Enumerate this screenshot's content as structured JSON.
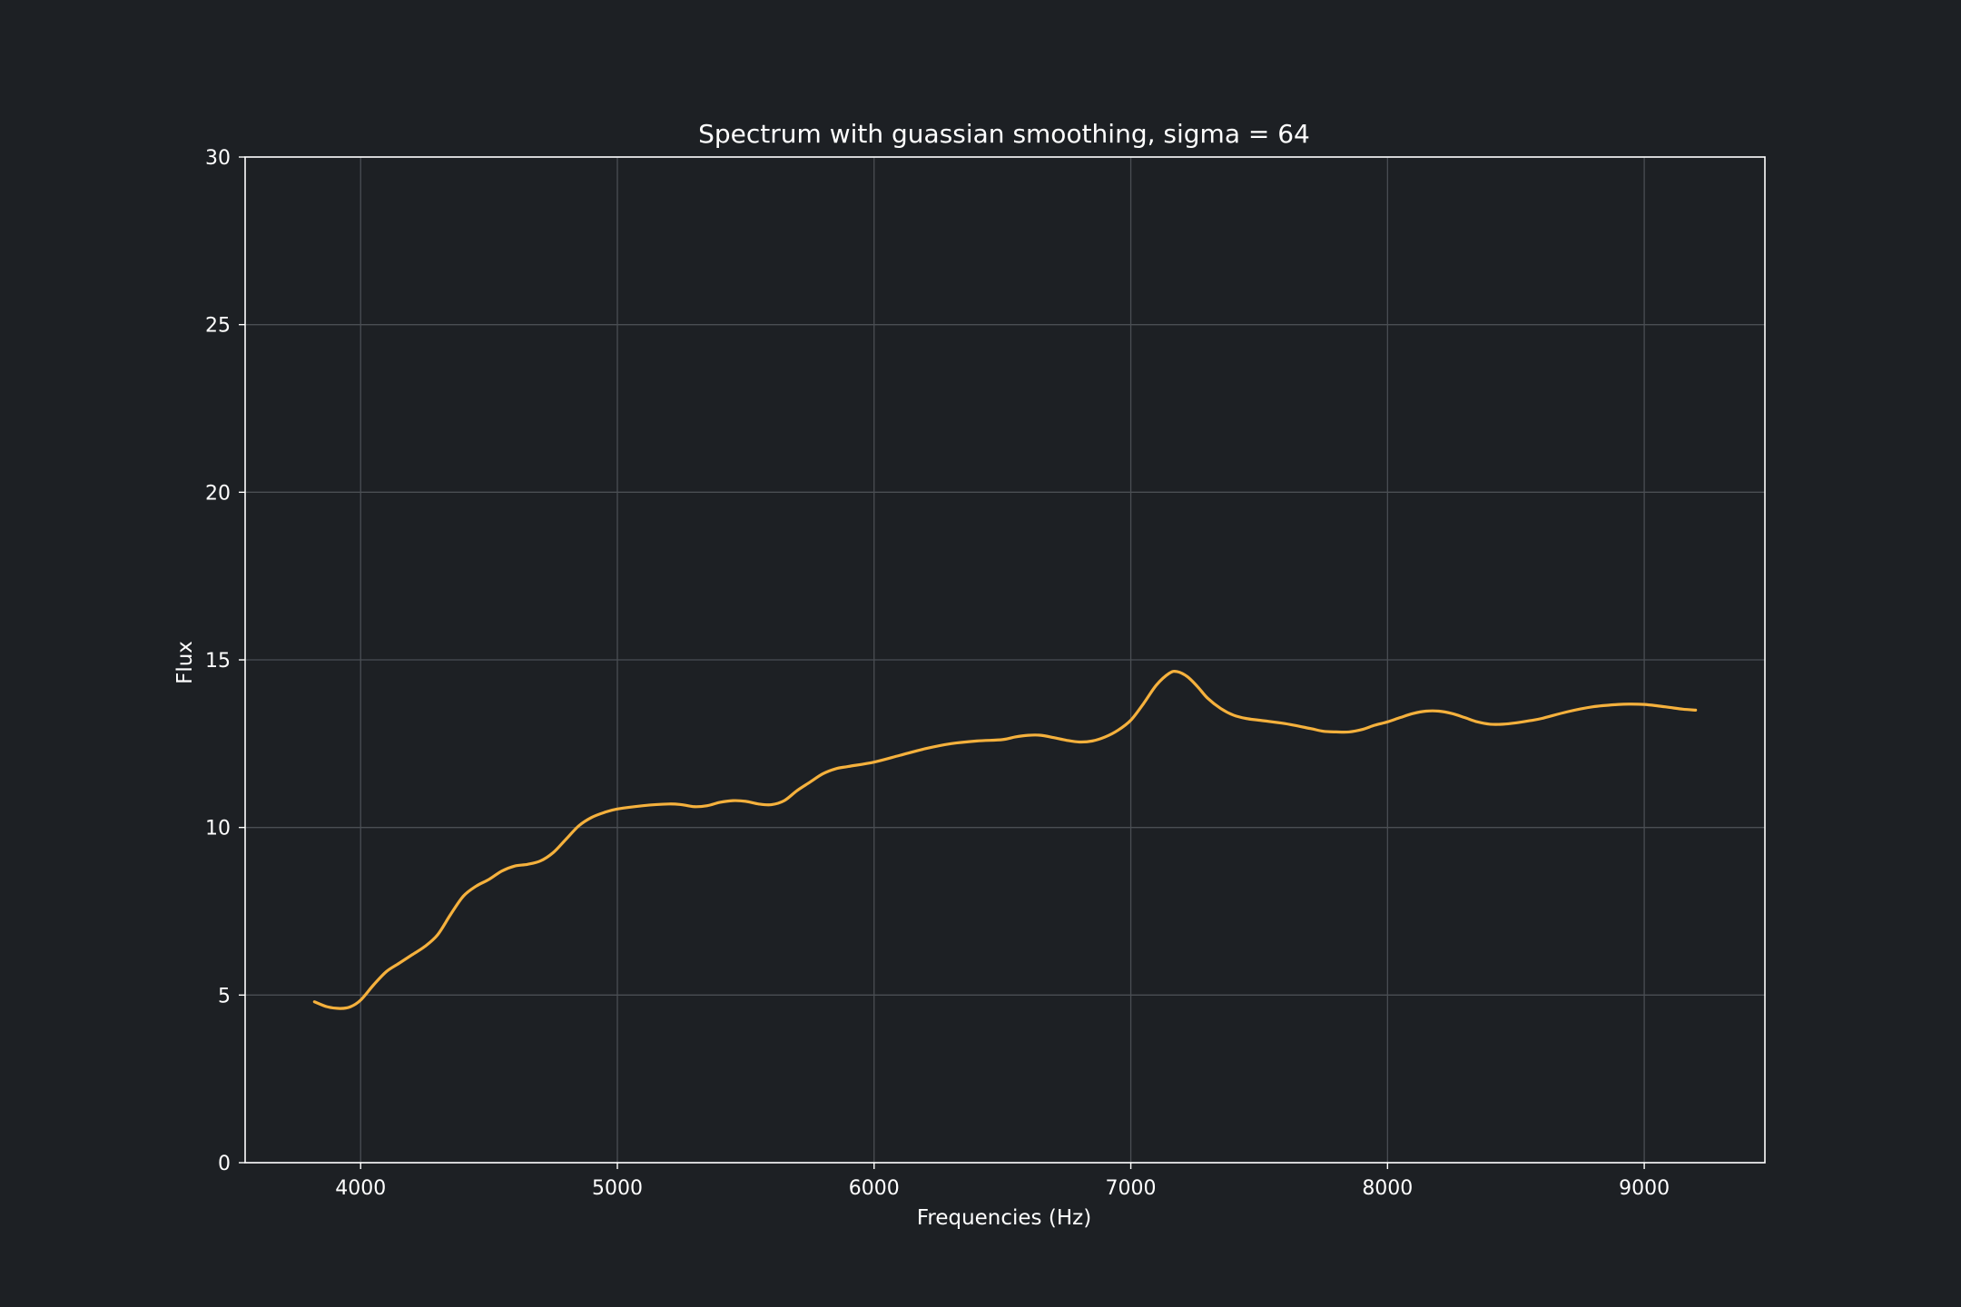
{
  "chart_data": {
    "type": "line",
    "title": "Spectrum with guassian smoothing, sigma = 64",
    "xlabel": "Frequencies (Hz)",
    "ylabel": "Flux",
    "xlim": [
      3550,
      9470
    ],
    "ylim": [
      0,
      30
    ],
    "xticks": [
      4000,
      5000,
      6000,
      7000,
      8000,
      9000
    ],
    "yticks": [
      0,
      5,
      10,
      15,
      20,
      25,
      30
    ],
    "grid": true,
    "line_color": "#f5b13d",
    "series": [
      {
        "x": [
          3820,
          3870,
          3920,
          3960,
          4000,
          4050,
          4100,
          4150,
          4200,
          4250,
          4300,
          4350,
          4400,
          4450,
          4500,
          4550,
          4600,
          4650,
          4700,
          4750,
          4800,
          4850,
          4900,
          4950,
          5000,
          5100,
          5200,
          5250,
          5300,
          5350,
          5400,
          5450,
          5500,
          5550,
          5600,
          5650,
          5700,
          5750,
          5800,
          5850,
          5900,
          6000,
          6100,
          6200,
          6300,
          6400,
          6500,
          6550,
          6600,
          6650,
          6700,
          6750,
          6800,
          6850,
          6900,
          6950,
          7000,
          7050,
          7100,
          7150,
          7180,
          7220,
          7260,
          7300,
          7350,
          7400,
          7450,
          7500,
          7600,
          7700,
          7750,
          7800,
          7850,
          7900,
          7950,
          8000,
          8050,
          8100,
          8150,
          8200,
          8250,
          8300,
          8350,
          8400,
          8450,
          8500,
          8550,
          8600,
          8700,
          8800,
          8900,
          8950,
          9000,
          9050,
          9100,
          9150,
          9200
        ],
        "y": [
          4.8,
          4.65,
          4.6,
          4.65,
          4.85,
          5.3,
          5.7,
          5.95,
          6.2,
          6.45,
          6.8,
          7.4,
          7.95,
          8.25,
          8.45,
          8.7,
          8.85,
          8.9,
          9.0,
          9.25,
          9.65,
          10.05,
          10.3,
          10.45,
          10.55,
          10.65,
          10.7,
          10.68,
          10.62,
          10.65,
          10.75,
          10.8,
          10.78,
          10.7,
          10.68,
          10.8,
          11.1,
          11.35,
          11.6,
          11.75,
          11.82,
          11.95,
          12.15,
          12.35,
          12.5,
          12.58,
          12.62,
          12.7,
          12.75,
          12.75,
          12.68,
          12.6,
          12.55,
          12.58,
          12.7,
          12.9,
          13.2,
          13.7,
          14.25,
          14.6,
          14.65,
          14.5,
          14.2,
          13.85,
          13.55,
          13.35,
          13.25,
          13.2,
          13.1,
          12.95,
          12.87,
          12.85,
          12.85,
          12.92,
          13.05,
          13.15,
          13.28,
          13.4,
          13.47,
          13.47,
          13.4,
          13.28,
          13.15,
          13.08,
          13.08,
          13.12,
          13.18,
          13.25,
          13.45,
          13.6,
          13.67,
          13.68,
          13.67,
          13.63,
          13.58,
          13.53,
          13.5
        ]
      }
    ]
  }
}
